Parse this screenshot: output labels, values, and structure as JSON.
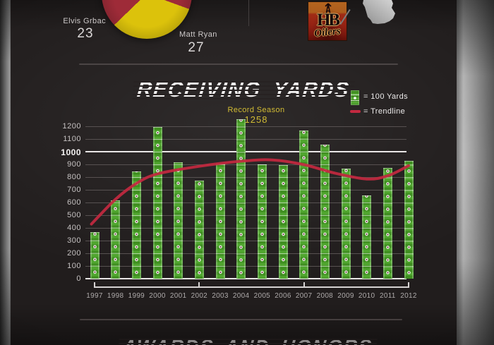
{
  "header": {
    "pie_labels": {
      "left_name": "Elvis Grbac",
      "left_value": "23",
      "right_name": "Matt Ryan",
      "right_value": "27"
    },
    "team_logo": {
      "monogram": "HB",
      "team_name": "Oilers"
    }
  },
  "chart": {
    "title": "RECEIVING YARDS",
    "record_annotation": {
      "label": "Record Season",
      "value": "1258"
    },
    "legend": [
      {
        "icon": "green-field-bar-swatch",
        "label": "= 100 Yards"
      },
      {
        "icon": "red-trendline-swatch",
        "label": "= Trendline"
      }
    ]
  },
  "footer": {
    "heading": "AWARDS AND HONORS"
  },
  "chart_data": [
    {
      "type": "pie",
      "slices": [
        {
          "label": "Elvis Grbac",
          "value": 23,
          "color": "#9e2b38"
        },
        {
          "label": "Matt Ryan",
          "value": 27,
          "color": "#dcc20b"
        }
      ],
      "note": "pie partially cropped at top of image"
    },
    {
      "type": "bar",
      "title": "RECEIVING YARDS",
      "categories": [
        "1997",
        "1998",
        "1999",
        "2000",
        "2001",
        "2002",
        "2003",
        "2004",
        "2005",
        "2006",
        "2007",
        "2008",
        "2009",
        "2010",
        "2011",
        "2012"
      ],
      "values": [
        365,
        615,
        845,
        1195,
        915,
        775,
        905,
        1258,
        900,
        895,
        1165,
        1055,
        865,
        655,
        875,
        930
      ],
      "bar_color": "#47a124",
      "bar_unit": "100 Yards per segment",
      "ylim": [
        0,
        1258
      ],
      "yticks": [
        0,
        100,
        200,
        300,
        400,
        500,
        600,
        700,
        800,
        900,
        1000,
        1100,
        1200
      ],
      "emphasized_ytick": 1000,
      "xaxis_ruler_ticks": [
        "1997",
        "2002",
        "2007",
        "2012"
      ],
      "grid": true,
      "legend_position": "top-right",
      "record": {
        "year": "2004",
        "value": 1258,
        "label": "Record Season"
      },
      "trendline": {
        "color": "#c32940",
        "points": [
          [
            1996.85,
            430
          ],
          [
            1998,
            625
          ],
          [
            1999,
            750
          ],
          [
            2000,
            825
          ],
          [
            2002,
            885
          ],
          [
            2004,
            925
          ],
          [
            2005.5,
            935
          ],
          [
            2007,
            898
          ],
          [
            2008.5,
            830
          ],
          [
            2010,
            785
          ],
          [
            2011,
            810
          ],
          [
            2012,
            890
          ]
        ]
      }
    }
  ]
}
